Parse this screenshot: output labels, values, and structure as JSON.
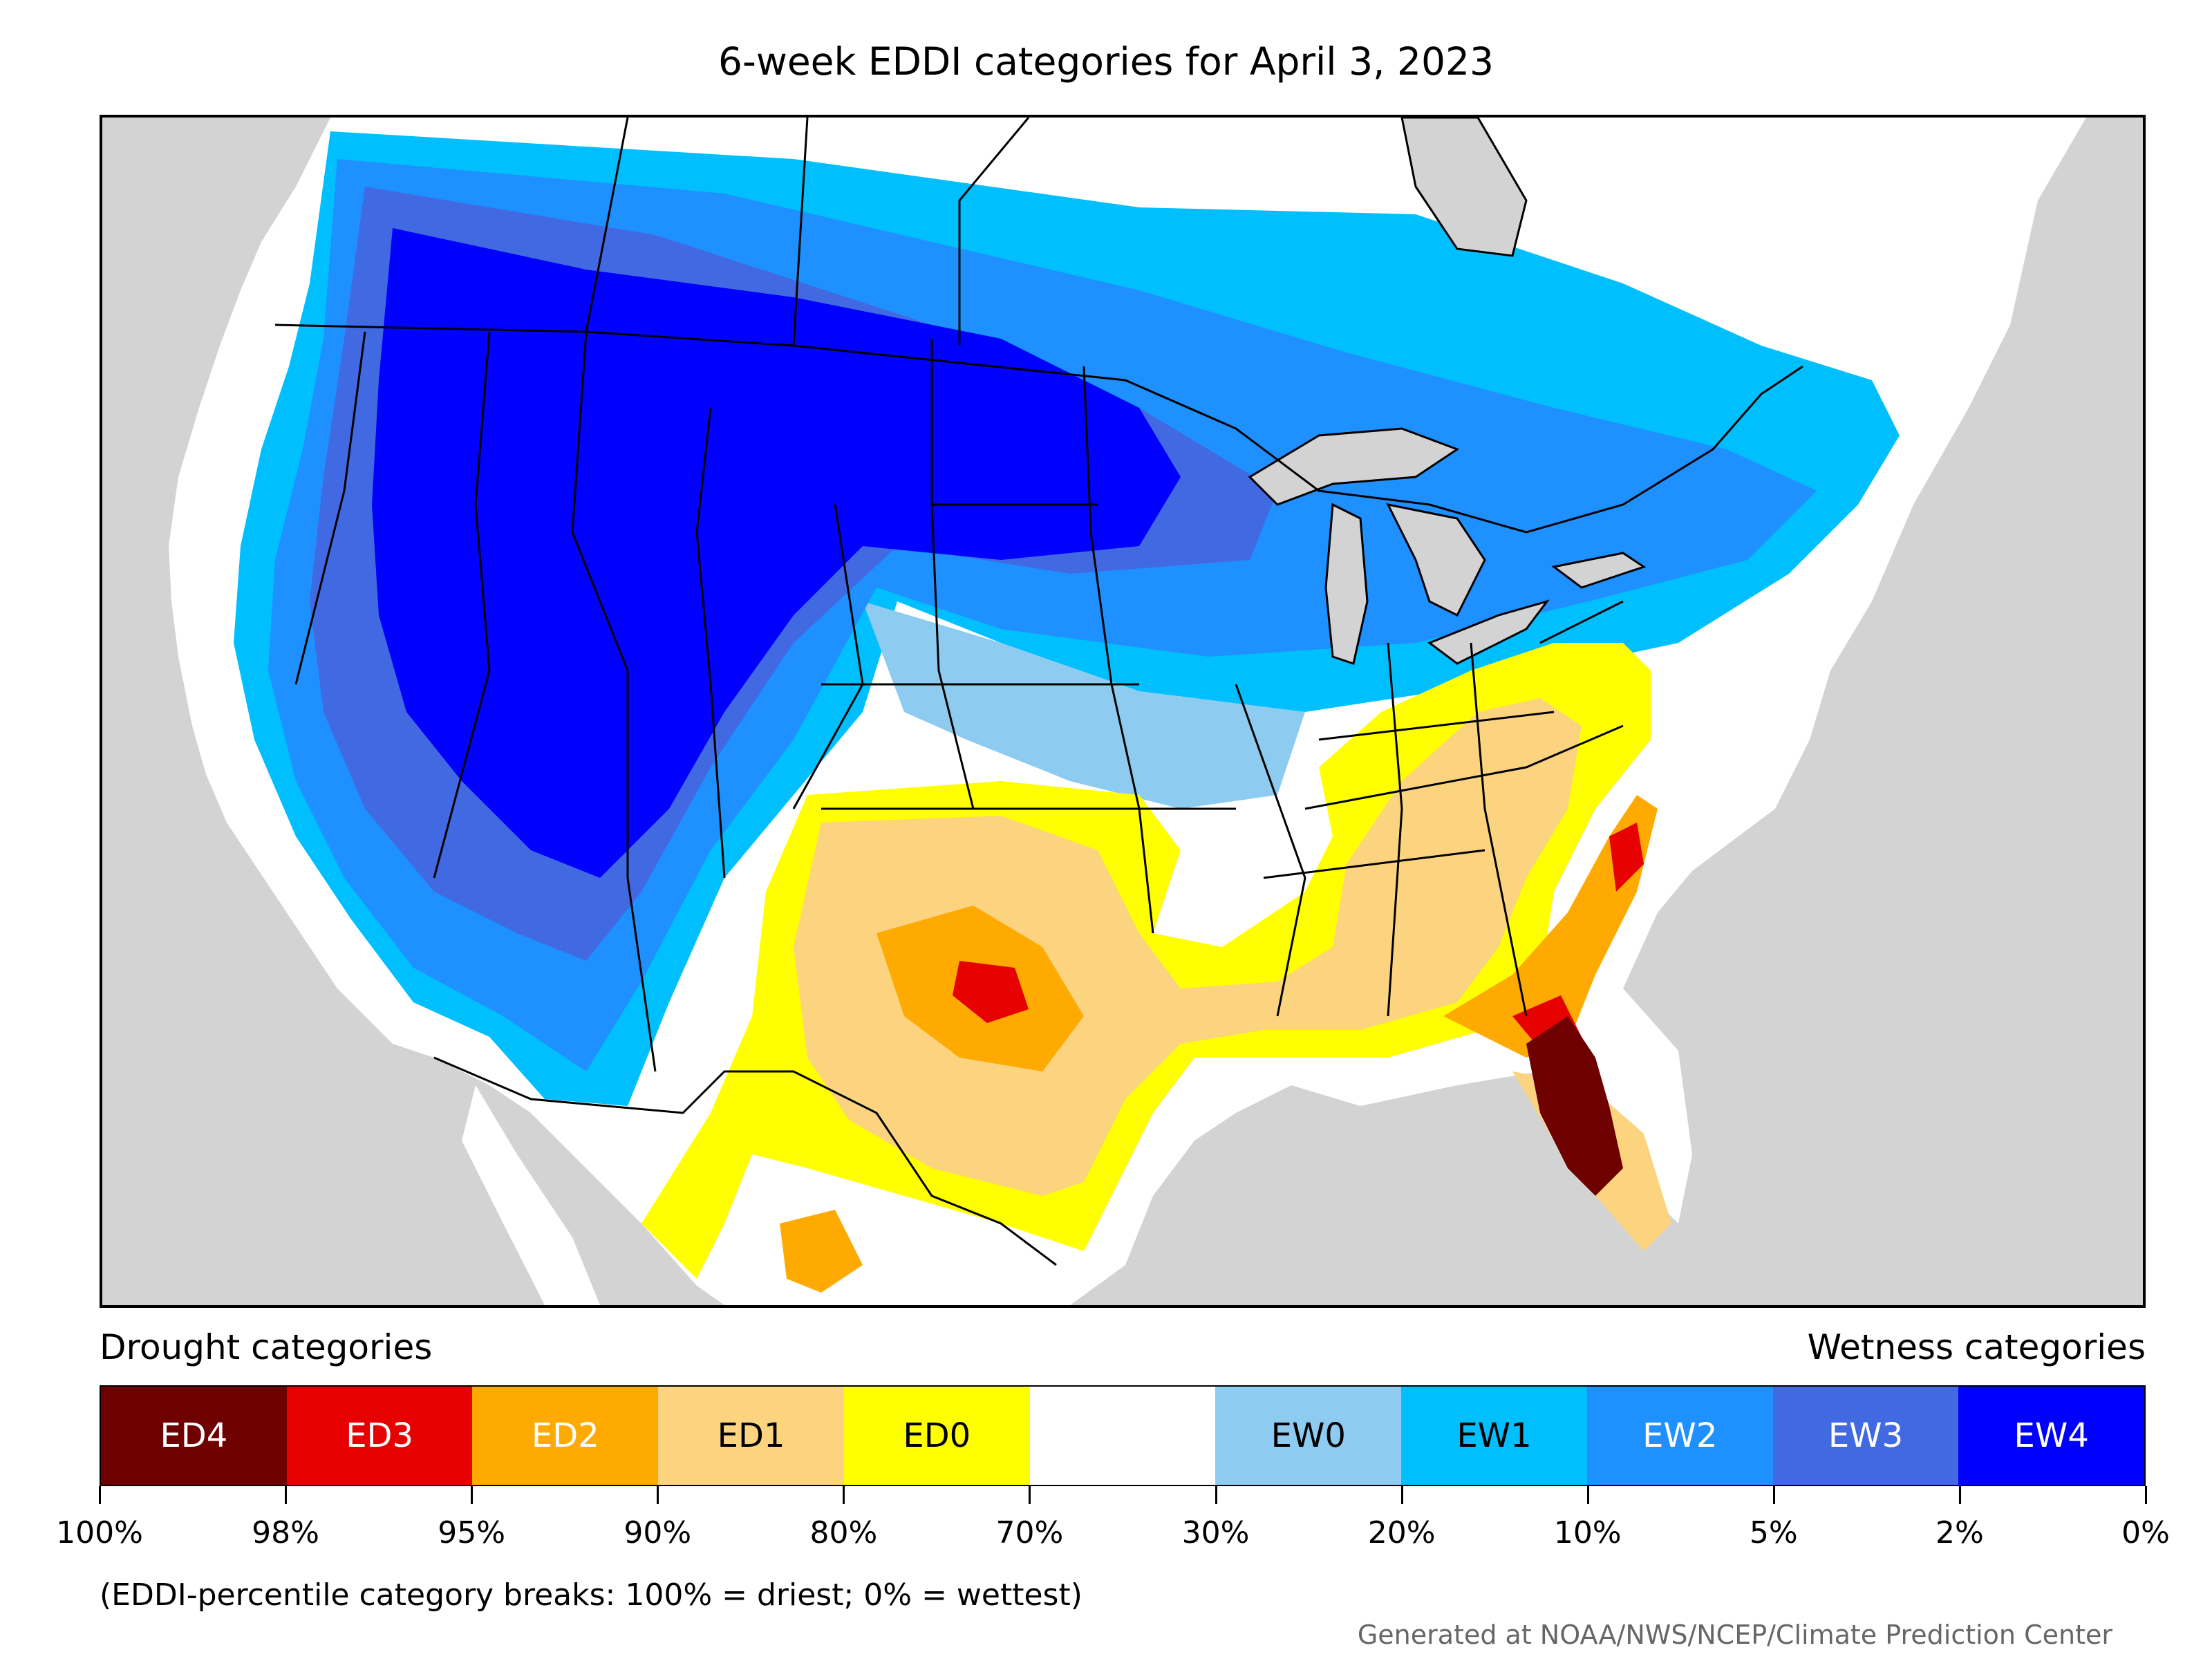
{
  "title": "6-week EDDI categories for April 3, 2023",
  "legend": {
    "drought_label": "Drought categories",
    "wetness_label": "Wetness categories",
    "categories": [
      {
        "code": "ED4",
        "color": "#6e0000",
        "text_color": "#ffffff"
      },
      {
        "code": "ED3",
        "color": "#e60000",
        "text_color": "#ffffff"
      },
      {
        "code": "ED2",
        "color": "#ffaa00",
        "text_color": "#ffffff"
      },
      {
        "code": "ED1",
        "color": "#fcd37f",
        "text_color": "#000000"
      },
      {
        "code": "ED0",
        "color": "#ffff00",
        "text_color": "#000000"
      },
      {
        "code": "",
        "color": "#ffffff",
        "text_color": "#000000"
      },
      {
        "code": "EW0",
        "color": "#8ecbf0",
        "text_color": "#000000"
      },
      {
        "code": "EW1",
        "color": "#00bfff",
        "text_color": "#000000"
      },
      {
        "code": "EW2",
        "color": "#1e90ff",
        "text_color": "#ffffff"
      },
      {
        "code": "EW3",
        "color": "#4169e1",
        "text_color": "#ffffff"
      },
      {
        "code": "EW4",
        "color": "#0000ff",
        "text_color": "#ffffff"
      }
    ],
    "tick_labels": [
      "100%",
      "98%",
      "95%",
      "90%",
      "80%",
      "70%",
      "30%",
      "20%",
      "10%",
      "5%",
      "2%",
      "0%"
    ]
  },
  "note": "(EDDI-percentile category breaks: 100% = driest; 0% = wettest)",
  "credit": "Generated at NOAA/NWS/NCEP/Climate Prediction Center",
  "map": {
    "ocean_color": "#d3d3d3",
    "lake_color": "#d3d3d3",
    "land_color": "#ffffff"
  }
}
